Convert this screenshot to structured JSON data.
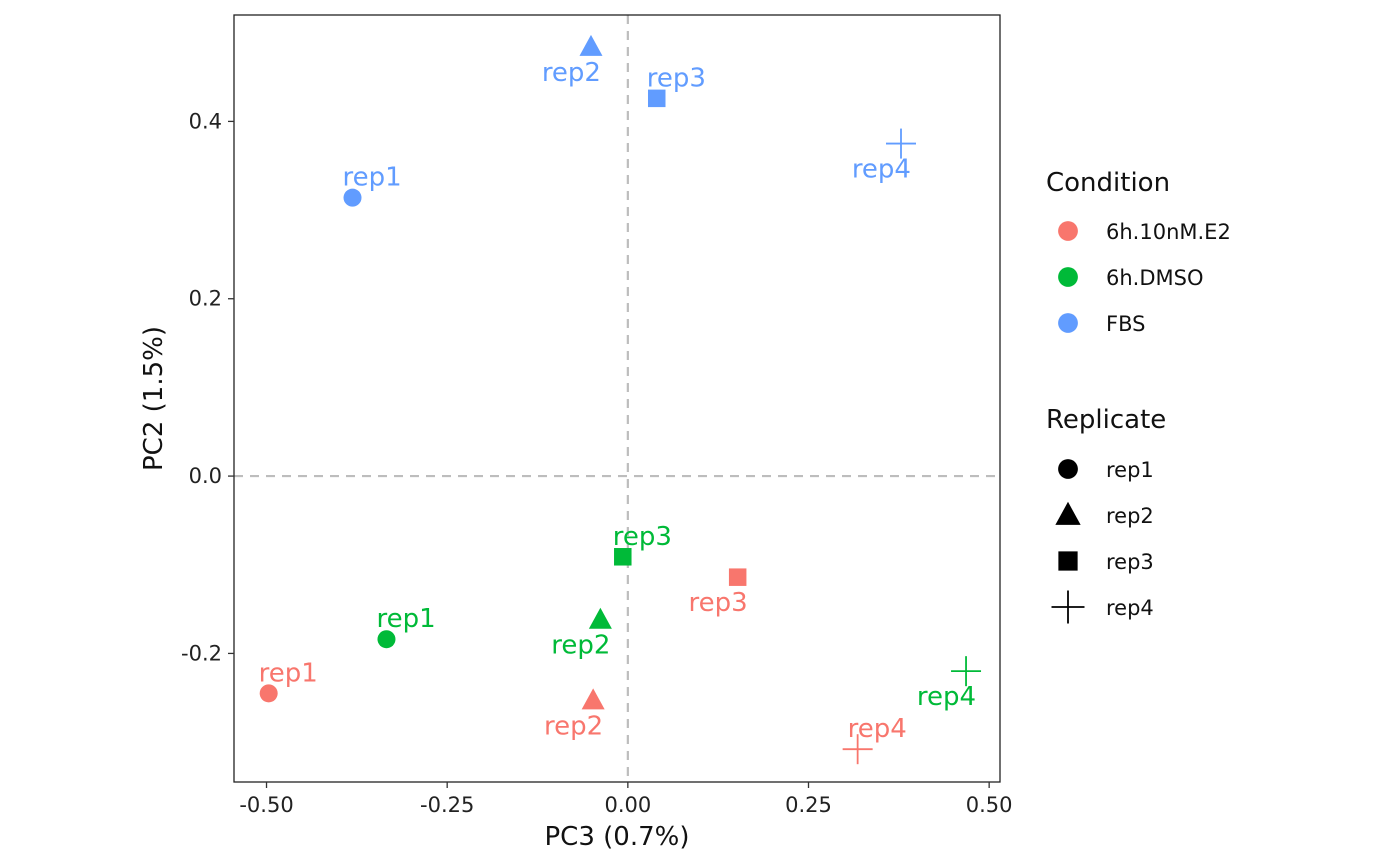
{
  "chart_data": {
    "type": "scatter",
    "xlabel": "PC3 (0.7%)",
    "ylabel": "PC2 (1.5%)",
    "xlim": [
      -0.545,
      0.515
    ],
    "ylim": [
      -0.345,
      0.52
    ],
    "xticks": [
      {
        "value": -0.5,
        "label": "-0.50"
      },
      {
        "value": -0.25,
        "label": "-0.25"
      },
      {
        "value": 0,
        "label": "0.00"
      },
      {
        "value": 0.25,
        "label": "0.25"
      },
      {
        "value": 0.5,
        "label": "0.50"
      }
    ],
    "yticks": [
      {
        "value": -0.2,
        "label": "-0.2"
      },
      {
        "value": 0,
        "label": "0.0"
      },
      {
        "value": 0.2,
        "label": "0.2"
      },
      {
        "value": 0.4,
        "label": "0.4"
      }
    ],
    "reference_lines": {
      "x": 0,
      "y": 0,
      "style": "dashed",
      "color": "#bdbdbd"
    },
    "grid": false,
    "legend_position": "right",
    "legends": [
      {
        "title": "Condition",
        "items": [
          {
            "label": "6h.10nM.E2",
            "color": "#F8766D",
            "shape": "circle"
          },
          {
            "label": "6h.DMSO",
            "color": "#00BA38",
            "shape": "circle"
          },
          {
            "label": "FBS",
            "color": "#619CFF",
            "shape": "circle"
          }
        ]
      },
      {
        "title": "Replicate",
        "items": [
          {
            "label": "rep1",
            "color": "#000000",
            "shape": "circle"
          },
          {
            "label": "rep2",
            "color": "#000000",
            "shape": "triangle"
          },
          {
            "label": "rep3",
            "color": "#000000",
            "shape": "square"
          },
          {
            "label": "rep4",
            "color": "#000000",
            "shape": "plus"
          }
        ]
      }
    ],
    "points": [
      {
        "condition": "6h.10nM.E2",
        "replicate": "rep1",
        "x": -0.497,
        "y": -0.245,
        "label": "rep1",
        "label_pos": "above-right"
      },
      {
        "condition": "6h.10nM.E2",
        "replicate": "rep2",
        "x": -0.048,
        "y": -0.253,
        "label": "rep2",
        "label_pos": "below-left"
      },
      {
        "condition": "6h.10nM.E2",
        "replicate": "rep3",
        "x": 0.152,
        "y": -0.114,
        "label": "rep3",
        "label_pos": "below-left"
      },
      {
        "condition": "6h.10nM.E2",
        "replicate": "rep4",
        "x": 0.318,
        "y": -0.308,
        "label": "rep4",
        "label_pos": "above-right"
      },
      {
        "condition": "6h.DMSO",
        "replicate": "rep1",
        "x": -0.334,
        "y": -0.184,
        "label": "rep1",
        "label_pos": "above-right"
      },
      {
        "condition": "6h.DMSO",
        "replicate": "rep2",
        "x": -0.038,
        "y": -0.162,
        "label": "rep2",
        "label_pos": "below-left"
      },
      {
        "condition": "6h.DMSO",
        "replicate": "rep3",
        "x": -0.007,
        "y": -0.091,
        "label": "rep3",
        "label_pos": "above-right"
      },
      {
        "condition": "6h.DMSO",
        "replicate": "rep4",
        "x": 0.468,
        "y": -0.22,
        "label": "rep4",
        "label_pos": "below-left"
      },
      {
        "condition": "FBS",
        "replicate": "rep1",
        "x": -0.381,
        "y": 0.314,
        "label": "rep1",
        "label_pos": "above-right"
      },
      {
        "condition": "FBS",
        "replicate": "rep2",
        "x": -0.051,
        "y": 0.484,
        "label": "rep2",
        "label_pos": "below-left"
      },
      {
        "condition": "FBS",
        "replicate": "rep3",
        "x": 0.04,
        "y": 0.426,
        "label": "rep3",
        "label_pos": "above-right"
      },
      {
        "condition": "FBS",
        "replicate": "rep4",
        "x": 0.378,
        "y": 0.375,
        "label": "rep4",
        "label_pos": "below-left"
      }
    ]
  }
}
